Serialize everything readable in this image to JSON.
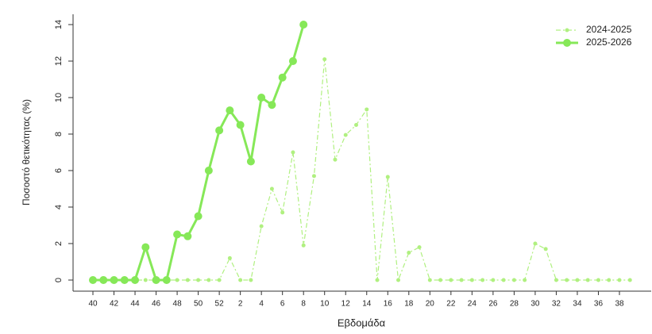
{
  "chart_data": {
    "type": "line",
    "x_label": "Εβδομάδα",
    "y_label": "Ποσοστό θετικότητας (%)",
    "categories": [
      "40",
      null,
      "42",
      null,
      "44",
      null,
      "46",
      null,
      "48",
      null,
      "50",
      null,
      "52",
      null,
      "2",
      null,
      "4",
      null,
      "6",
      null,
      "8",
      null,
      "10",
      null,
      "12",
      null,
      "14",
      null,
      "16",
      null,
      "18",
      null,
      "20",
      null,
      "22",
      null,
      "24",
      null,
      "26",
      null,
      "28",
      null,
      "30",
      null,
      "32",
      null,
      "34",
      null,
      "36",
      null,
      "38",
      null
    ],
    "series": [
      {
        "name": "2024-2025",
        "color": "#b0f080",
        "dashed": true,
        "values": [
          0,
          0,
          0,
          0,
          0,
          0,
          0,
          0,
          0,
          0,
          0,
          0,
          0,
          1.2,
          0,
          0,
          2.95,
          5.0,
          3.7,
          7.0,
          1.9,
          5.7,
          12.1,
          6.6,
          7.95,
          8.5,
          9.35,
          0,
          5.65,
          0,
          1.5,
          1.8,
          0,
          0,
          0,
          0,
          0,
          0,
          0,
          0,
          0,
          0,
          2.0,
          1.7,
          0,
          0,
          0,
          0,
          0,
          0,
          0,
          0
        ]
      },
      {
        "name": "2025-2026",
        "color": "#86e858",
        "dashed": false,
        "values": [
          0,
          0,
          0,
          0,
          0,
          1.8,
          0,
          0,
          2.5,
          2.4,
          3.5,
          6.0,
          8.2,
          9.3,
          8.5,
          6.5,
          10.0,
          9.6,
          11.1,
          12.0,
          14.0,
          null,
          null,
          null,
          null,
          null,
          null,
          null,
          null,
          null,
          null,
          null,
          null,
          null,
          null,
          null,
          null,
          null,
          null,
          null,
          null,
          null,
          null,
          null,
          null,
          null,
          null,
          null,
          null,
          null,
          null,
          null
        ]
      }
    ],
    "ylim": [
      0,
      14
    ],
    "yticks": [
      0,
      2,
      4,
      6,
      8,
      10,
      12,
      14
    ],
    "legend": "top-right"
  }
}
